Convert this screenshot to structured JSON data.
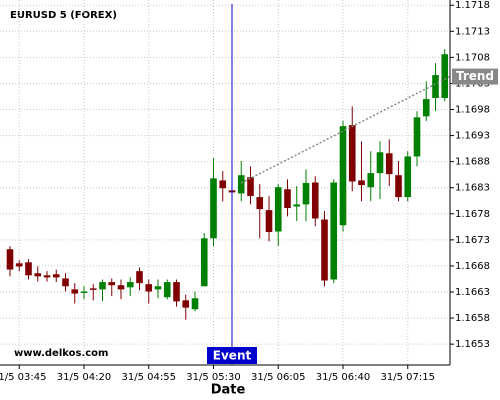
{
  "chart_data": {
    "type": "candlestick",
    "title": "EURUSD 5 (FOREX)",
    "x_label": "Date",
    "watermark": "www.delkos.com",
    "categories": [
      null,
      "31/5 03:45",
      null,
      null,
      null,
      null,
      null,
      null,
      "31/5 04:20",
      null,
      null,
      null,
      null,
      null,
      null,
      "31/5 04:55",
      null,
      null,
      null,
      null,
      null,
      null,
      "31/5 05:30",
      null,
      null,
      null,
      null,
      null,
      null,
      "31/5 06:05",
      null,
      null,
      null,
      null,
      null,
      null,
      "31/5 06:40",
      null,
      null,
      null,
      null,
      null,
      null,
      "31/5 07:15",
      null,
      null,
      null,
      null
    ],
    "open": [
      1.16712,
      1.16685,
      1.16687,
      1.16666,
      1.16662,
      1.16664,
      1.16656,
      1.16635,
      1.16631,
      1.16637,
      1.16635,
      1.16649,
      1.16643,
      1.16639,
      1.1667,
      1.16645,
      1.16635,
      1.1662,
      1.16649,
      1.16614,
      1.16597,
      1.16641,
      1.16733,
      1.16844,
      1.16825,
      1.16819,
      1.1685,
      1.16812,
      1.16787,
      1.16746,
      1.16827,
      1.16794,
      1.16798,
      1.1684,
      1.16769,
      1.16654,
      1.16758,
      1.1695,
      1.16844,
      1.16831,
      1.16858,
      1.16896,
      1.16854,
      1.16812,
      1.1689,
      1.16967,
      1.17002,
      1.17002
    ],
    "high": [
      1.16718,
      1.16691,
      1.16693,
      1.16679,
      1.1667,
      1.16673,
      1.16666,
      1.16647,
      1.16641,
      1.16645,
      1.16654,
      1.16656,
      1.16654,
      1.16658,
      1.16677,
      1.16654,
      1.16654,
      1.16654,
      1.16654,
      1.16625,
      1.16631,
      1.16743,
      1.16887,
      1.16862,
      1.16831,
      1.16881,
      1.16871,
      1.16837,
      1.16814,
      1.16837,
      1.16846,
      1.16833,
      1.16865,
      1.16852,
      1.16785,
      1.16846,
      1.16958,
      1.16986,
      1.16919,
      1.169,
      1.16919,
      1.16923,
      1.16881,
      1.169,
      1.16977,
      1.17034,
      1.17069,
      1.17096
    ],
    "low": [
      1.1666,
      1.1667,
      1.16654,
      1.1665,
      1.1665,
      1.16649,
      1.16631,
      1.16608,
      1.16616,
      1.16614,
      1.16612,
      1.16622,
      1.16616,
      1.16622,
      1.16633,
      1.16608,
      1.16618,
      1.16616,
      1.16602,
      1.16577,
      1.16593,
      1.16641,
      1.16718,
      1.16804,
      1.16812,
      1.16804,
      1.16798,
      1.16733,
      1.16727,
      1.16718,
      1.16775,
      1.16766,
      1.16766,
      1.16756,
      1.16641,
      1.16647,
      1.16746,
      1.16823,
      1.16804,
      1.16804,
      1.16808,
      1.16833,
      1.16804,
      1.16804,
      1.16871,
      1.16958,
      1.16977,
      1.16996
    ],
    "close": [
      1.16673,
      1.16679,
      1.16662,
      1.1666,
      1.16658,
      1.16658,
      1.16641,
      1.16627,
      1.16631,
      1.16635,
      1.16649,
      1.16643,
      1.16635,
      1.16649,
      1.16647,
      1.16631,
      1.16641,
      1.16649,
      1.16612,
      1.166,
      1.16618,
      1.16733,
      1.16848,
      1.16829,
      1.16821,
      1.16854,
      1.16814,
      1.16789,
      1.16745,
      1.16831,
      1.16791,
      1.16798,
      1.16839,
      1.16771,
      1.16652,
      1.1684,
      1.16948,
      1.16842,
      1.16835,
      1.16858,
      1.16898,
      1.16856,
      1.16812,
      1.1689,
      1.16965,
      1.17,
      1.17046,
      1.17086
    ],
    "up_color": "#008000",
    "down_color": "#800000",
    "ylim": [
      1.1649,
      1.1719
    ],
    "yticks": [
      1.1653,
      1.1658,
      1.1663,
      1.1668,
      1.1673,
      1.1678,
      1.1683,
      1.1688,
      1.1693,
      1.1698,
      1.1703,
      1.1708,
      1.1713,
      1.1718
    ],
    "grid": true,
    "event": {
      "label": "Event",
      "category_index": 24,
      "color": "#0000cc"
    },
    "trend": {
      "label": "Trend",
      "start_index": 25,
      "start_value": 1.16839,
      "end_index": 47,
      "end_value": 1.17038,
      "color": "#888888"
    }
  }
}
